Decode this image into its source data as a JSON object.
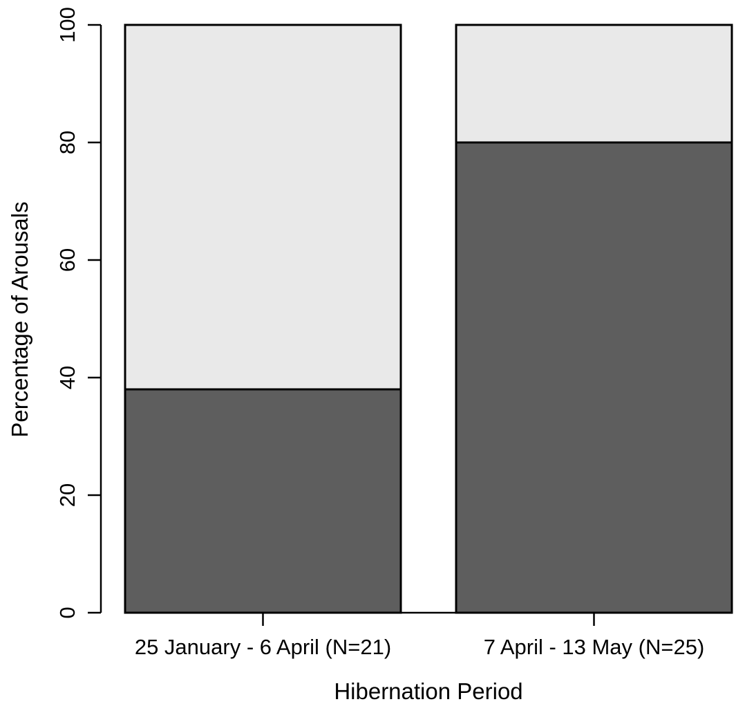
{
  "chart_data": {
    "type": "bar",
    "stacked": true,
    "categories": [
      "25 January - 6 April (N=21)",
      "7 April - 13 May (N=25)"
    ],
    "series": [
      {
        "values": [
          38,
          80
        ],
        "color": "#5e5e5e"
      },
      {
        "values": [
          62,
          20
        ],
        "color": "#e9e9e9"
      }
    ],
    "xlabel": "Hibernation Period",
    "ylabel": "Percentage of Arousals",
    "ylim": [
      0,
      100
    ],
    "yticks": [
      "0",
      "20",
      "40",
      "60",
      "80",
      "100"
    ],
    "grid": false,
    "legend": "none"
  }
}
